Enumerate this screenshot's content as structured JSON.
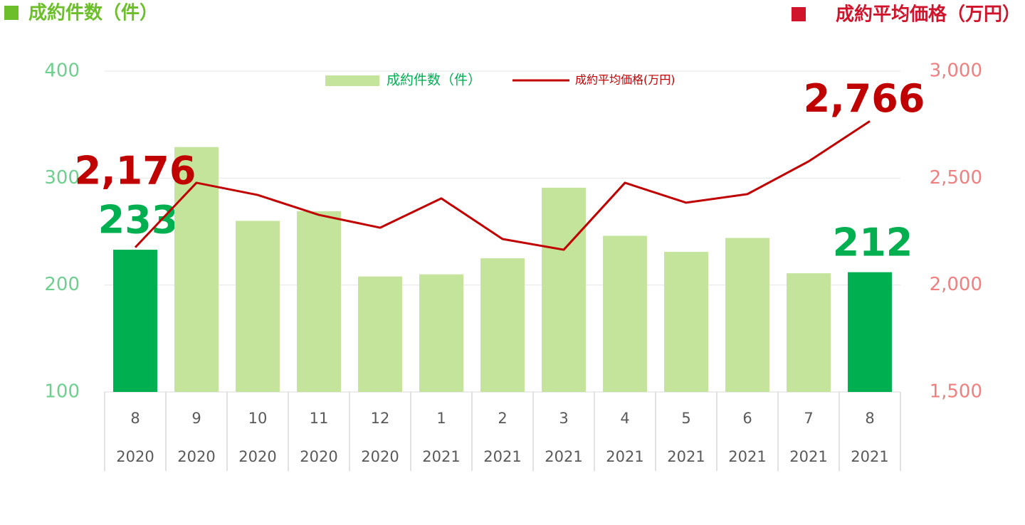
{
  "chart_data": {
    "type": "bar-line",
    "y_label": "成約件数（件）",
    "y2_label": "成約平均価格（万円）",
    "categories": [
      "8",
      "9",
      "10",
      "11",
      "12",
      "1",
      "2",
      "3",
      "4",
      "5",
      "6",
      "7",
      "8"
    ],
    "years": [
      "2020",
      "2020",
      "2020",
      "2020",
      "2020",
      "2021",
      "2021",
      "2021",
      "2021",
      "2021",
      "2021",
      "2021",
      "2021"
    ],
    "series": [
      {
        "name": "成約件数（件）",
        "type": "bar",
        "color": "#c5e49b",
        "colors": [
          "#00b050",
          "#c5e49b",
          "#c5e49b",
          "#c5e49b",
          "#c5e49b",
          "#c5e49b",
          "#c5e49b",
          "#c5e49b",
          "#c5e49b",
          "#c5e49b",
          "#c5e49b",
          "#c5e49b",
          "#00b050"
        ],
        "label_color": "#00b050",
        "values": [
          233,
          329,
          260,
          269,
          208,
          210,
          225,
          291,
          246,
          231,
          244,
          211,
          212
        ],
        "value_labels": [
          "233",
          null,
          null,
          null,
          null,
          null,
          null,
          null,
          null,
          null,
          null,
          null,
          "212"
        ]
      },
      {
        "name": "成約平均価格(万円)",
        "type": "line",
        "axis": "y2",
        "color": "#c00000",
        "values": [
          2176,
          2478,
          2421,
          2328,
          2268,
          2405,
          2215,
          2165,
          2478,
          2385,
          2425,
          2578,
          2766
        ],
        "value_labels": [
          "2,176",
          null,
          null,
          null,
          null,
          null,
          null,
          null,
          null,
          null,
          null,
          null,
          "2,766"
        ]
      }
    ],
    "ylim": [
      100,
      400
    ],
    "yticks": [
      100,
      200,
      300,
      400
    ],
    "y2lim": [
      1500,
      3000
    ],
    "y2ticks": [
      {
        "value": 1500,
        "label": "1,500"
      },
      {
        "value": 2000,
        "label": "2,000"
      },
      {
        "value": 2500,
        "label": "2,500"
      },
      {
        "value": 3000,
        "label": "3,000"
      }
    ],
    "grid": true,
    "legend": "top"
  }
}
